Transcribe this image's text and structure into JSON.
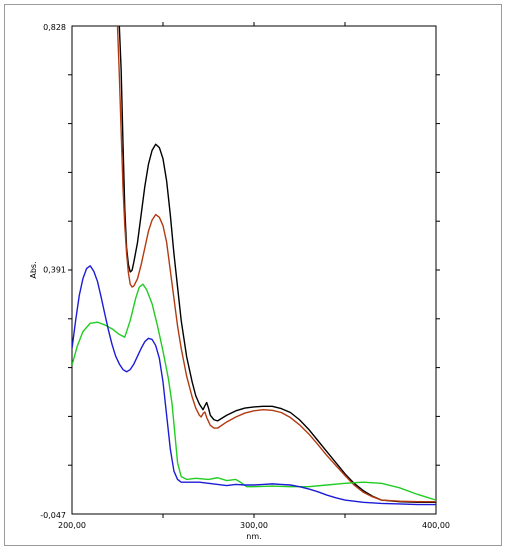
{
  "chart_data": {
    "type": "line",
    "xlabel": "nm.",
    "ylabel": "Abs.",
    "xlim": [
      200,
      400
    ],
    "ylim": [
      -0.047,
      0.828
    ],
    "x_tick_labels": [
      "200,00",
      "300,00",
      "400,00"
    ],
    "y_tick_labels": [
      "0,828",
      "0,391",
      "-0,047"
    ],
    "x_tick_values": [
      200,
      300,
      400
    ],
    "y_tick_values": [
      0.828,
      0.391,
      -0.047
    ],
    "grid": false,
    "series": [
      {
        "color": "#000000",
        "points": [
          [
            226,
            0.828
          ],
          [
            227,
            0.75
          ],
          [
            228,
            0.62
          ],
          [
            229,
            0.5
          ],
          [
            230,
            0.43
          ],
          [
            231,
            0.4
          ],
          [
            232,
            0.387
          ],
          [
            233,
            0.39
          ],
          [
            234,
            0.405
          ],
          [
            236,
            0.44
          ],
          [
            238,
            0.49
          ],
          [
            240,
            0.54
          ],
          [
            242,
            0.58
          ],
          [
            244,
            0.605
          ],
          [
            246,
            0.616
          ],
          [
            248,
            0.61
          ],
          [
            250,
            0.59
          ],
          [
            252,
            0.55
          ],
          [
            254,
            0.49
          ],
          [
            256,
            0.42
          ],
          [
            258,
            0.36
          ],
          [
            260,
            0.3
          ],
          [
            263,
            0.235
          ],
          [
            266,
            0.19
          ],
          [
            268,
            0.165
          ],
          [
            270,
            0.15
          ],
          [
            272,
            0.14
          ],
          [
            273,
            0.147
          ],
          [
            274,
            0.153
          ],
          [
            275,
            0.143
          ],
          [
            276,
            0.13
          ],
          [
            278,
            0.122
          ],
          [
            280,
            0.12
          ],
          [
            285,
            0.13
          ],
          [
            290,
            0.138
          ],
          [
            295,
            0.143
          ],
          [
            300,
            0.145
          ],
          [
            305,
            0.146
          ],
          [
            310,
            0.146
          ],
          [
            315,
            0.142
          ],
          [
            320,
            0.135
          ],
          [
            325,
            0.122
          ],
          [
            330,
            0.105
          ],
          [
            335,
            0.085
          ],
          [
            340,
            0.065
          ],
          [
            345,
            0.045
          ],
          [
            350,
            0.025
          ],
          [
            355,
            0.008
          ],
          [
            360,
            -0.005
          ],
          [
            365,
            -0.015
          ],
          [
            370,
            -0.022
          ],
          [
            380,
            -0.025
          ],
          [
            390,
            -0.026
          ],
          [
            400,
            -0.026
          ]
        ]
      },
      {
        "color": "#b33a10",
        "points": [
          [
            225,
            0.828
          ],
          [
            226,
            0.74
          ],
          [
            227,
            0.64
          ],
          [
            228,
            0.54
          ],
          [
            229,
            0.47
          ],
          [
            230,
            0.42
          ],
          [
            231,
            0.385
          ],
          [
            232,
            0.365
          ],
          [
            233,
            0.36
          ],
          [
            234,
            0.362
          ],
          [
            236,
            0.375
          ],
          [
            238,
            0.4
          ],
          [
            240,
            0.43
          ],
          [
            242,
            0.46
          ],
          [
            244,
            0.48
          ],
          [
            246,
            0.49
          ],
          [
            248,
            0.485
          ],
          [
            250,
            0.47
          ],
          [
            252,
            0.44
          ],
          [
            254,
            0.39
          ],
          [
            256,
            0.34
          ],
          [
            258,
            0.29
          ],
          [
            260,
            0.25
          ],
          [
            263,
            0.2
          ],
          [
            266,
            0.163
          ],
          [
            268,
            0.143
          ],
          [
            270,
            0.13
          ],
          [
            271,
            0.127
          ],
          [
            272,
            0.133
          ],
          [
            273,
            0.136
          ],
          [
            274,
            0.126
          ],
          [
            276,
            0.112
          ],
          [
            278,
            0.107
          ],
          [
            280,
            0.107
          ],
          [
            285,
            0.118
          ],
          [
            290,
            0.127
          ],
          [
            295,
            0.134
          ],
          [
            300,
            0.138
          ],
          [
            305,
            0.14
          ],
          [
            310,
            0.139
          ],
          [
            315,
            0.135
          ],
          [
            320,
            0.126
          ],
          [
            325,
            0.113
          ],
          [
            330,
            0.097
          ],
          [
            335,
            0.078
          ],
          [
            340,
            0.058
          ],
          [
            345,
            0.04
          ],
          [
            350,
            0.022
          ],
          [
            355,
            0.005
          ],
          [
            360,
            -0.008
          ],
          [
            365,
            -0.016
          ],
          [
            370,
            -0.022
          ],
          [
            380,
            -0.024
          ],
          [
            390,
            -0.025
          ],
          [
            400,
            -0.025
          ]
        ]
      },
      {
        "color": "#22cc22",
        "points": [
          [
            200,
            0.22
          ],
          [
            203,
            0.255
          ],
          [
            206,
            0.28
          ],
          [
            210,
            0.295
          ],
          [
            214,
            0.297
          ],
          [
            218,
            0.292
          ],
          [
            222,
            0.285
          ],
          [
            226,
            0.275
          ],
          [
            229,
            0.27
          ],
          [
            232,
            0.3
          ],
          [
            235,
            0.34
          ],
          [
            237,
            0.36
          ],
          [
            239,
            0.365
          ],
          [
            241,
            0.355
          ],
          [
            244,
            0.33
          ],
          [
            247,
            0.29
          ],
          [
            250,
            0.245
          ],
          [
            253,
            0.195
          ],
          [
            255,
            0.15
          ],
          [
            257,
            0.08
          ],
          [
            258,
            0.045
          ],
          [
            260,
            0.02
          ],
          [
            263,
            0.015
          ],
          [
            268,
            0.017
          ],
          [
            275,
            0.015
          ],
          [
            280,
            0.018
          ],
          [
            285,
            0.013
          ],
          [
            290,
            0.015
          ],
          [
            293,
            0.009
          ],
          [
            296,
            0.002
          ],
          [
            300,
            0.002
          ],
          [
            310,
            0.003
          ],
          [
            320,
            0.002
          ],
          [
            330,
            0.002
          ],
          [
            340,
            0.005
          ],
          [
            350,
            0.008
          ],
          [
            360,
            0.01
          ],
          [
            370,
            0.008
          ],
          [
            380,
            0.0
          ],
          [
            390,
            -0.012
          ],
          [
            400,
            -0.022
          ]
        ]
      },
      {
        "color": "#1c1cd6",
        "points": [
          [
            200,
            0.25
          ],
          [
            202,
            0.3
          ],
          [
            204,
            0.345
          ],
          [
            206,
            0.375
          ],
          [
            208,
            0.393
          ],
          [
            210,
            0.398
          ],
          [
            212,
            0.388
          ],
          [
            214,
            0.37
          ],
          [
            216,
            0.342
          ],
          [
            218,
            0.312
          ],
          [
            220,
            0.283
          ],
          [
            222,
            0.257
          ],
          [
            224,
            0.236
          ],
          [
            226,
            0.222
          ],
          [
            228,
            0.212
          ],
          [
            230,
            0.208
          ],
          [
            232,
            0.212
          ],
          [
            234,
            0.222
          ],
          [
            236,
            0.236
          ],
          [
            238,
            0.25
          ],
          [
            240,
            0.262
          ],
          [
            242,
            0.268
          ],
          [
            244,
            0.266
          ],
          [
            246,
            0.255
          ],
          [
            248,
            0.232
          ],
          [
            250,
            0.19
          ],
          [
            252,
            0.13
          ],
          [
            254,
            0.07
          ],
          [
            256,
            0.03
          ],
          [
            258,
            0.015
          ],
          [
            260,
            0.01
          ],
          [
            265,
            0.01
          ],
          [
            270,
            0.01
          ],
          [
            275,
            0.008
          ],
          [
            280,
            0.006
          ],
          [
            285,
            0.004
          ],
          [
            290,
            0.006
          ],
          [
            295,
            0.005
          ],
          [
            300,
            0.005
          ],
          [
            305,
            0.006
          ],
          [
            310,
            0.007
          ],
          [
            315,
            0.006
          ],
          [
            320,
            0.005
          ],
          [
            325,
            0.002
          ],
          [
            330,
            -0.002
          ],
          [
            335,
            -0.007
          ],
          [
            340,
            -0.013
          ],
          [
            345,
            -0.018
          ],
          [
            350,
            -0.022
          ],
          [
            360,
            -0.026
          ],
          [
            370,
            -0.028
          ],
          [
            380,
            -0.029
          ],
          [
            390,
            -0.03
          ],
          [
            400,
            -0.03
          ]
        ]
      }
    ]
  }
}
